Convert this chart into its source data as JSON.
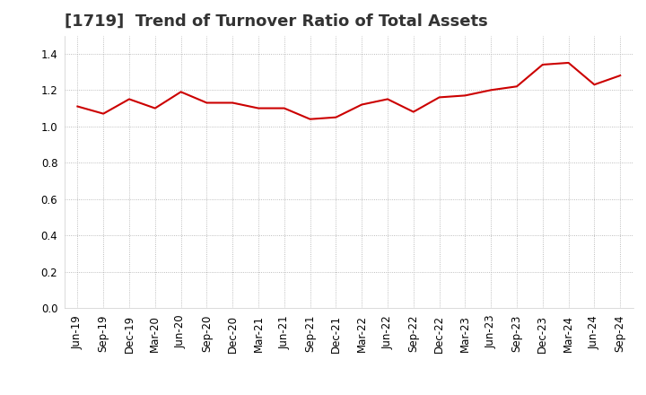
{
  "title": "[1719]  Trend of Turnover Ratio of Total Assets",
  "labels": [
    "Jun-19",
    "Sep-19",
    "Dec-19",
    "Mar-20",
    "Jun-20",
    "Sep-20",
    "Dec-20",
    "Mar-21",
    "Jun-21",
    "Sep-21",
    "Dec-21",
    "Mar-22",
    "Jun-22",
    "Sep-22",
    "Dec-22",
    "Mar-23",
    "Jun-23",
    "Sep-23",
    "Dec-23",
    "Mar-24",
    "Jun-24",
    "Sep-24"
  ],
  "values": [
    1.11,
    1.07,
    1.15,
    1.1,
    1.19,
    1.13,
    1.13,
    1.1,
    1.1,
    1.04,
    1.05,
    1.12,
    1.15,
    1.08,
    1.16,
    1.17,
    1.2,
    1.22,
    1.34,
    1.35,
    1.23,
    1.28
  ],
  "line_color": "#cc0000",
  "background_color": "#ffffff",
  "grid_color": "#aaaaaa",
  "ylim": [
    0.0,
    1.5
  ],
  "yticks": [
    0.0,
    0.2,
    0.4,
    0.6,
    0.8,
    1.0,
    1.2,
    1.4
  ],
  "title_fontsize": 13,
  "tick_fontsize": 8.5
}
